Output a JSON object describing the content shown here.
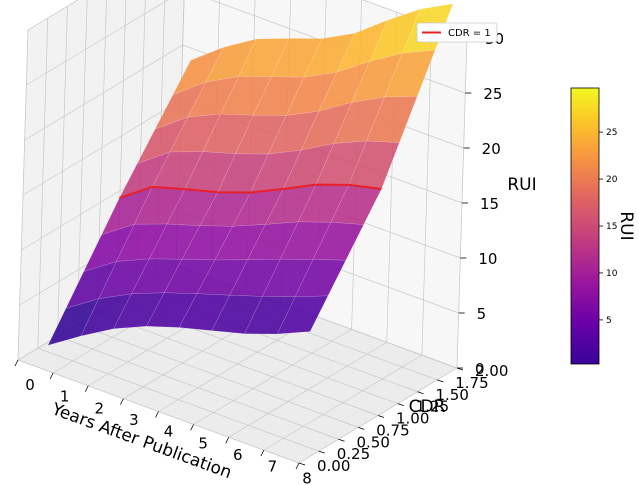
{
  "chart_data": {
    "type": "surface3d",
    "title": "",
    "x_axis": {
      "label": "Years After Publication",
      "ticks": [
        "0",
        "1",
        "2",
        "3",
        "4",
        "5",
        "6",
        "7",
        "8"
      ],
      "range": [
        0,
        8
      ]
    },
    "y_axis": {
      "label": "CDR",
      "ticks": [
        "0.00",
        "0.25",
        "0.50",
        "0.75",
        "1.00",
        "1.25",
        "1.50",
        "1.75",
        "2.00"
      ],
      "range": [
        0,
        2
      ]
    },
    "z_axis": {
      "label": "RUI",
      "ticks": [
        "0",
        "5",
        "10",
        "15",
        "20",
        "25",
        "30"
      ],
      "range": [
        0,
        30
      ]
    },
    "colorbar": {
      "label": "RUI",
      "ticks": [
        "5",
        "10",
        "15",
        "20",
        "25"
      ],
      "range": [
        0.3,
        29.7
      ],
      "colormap": "plasma"
    },
    "legend": {
      "placement": "top-right",
      "entries": [
        {
          "name": "CDR = 1",
          "color": "#e8202a"
        }
      ]
    },
    "surface": {
      "x": [
        0,
        1,
        2,
        3,
        4,
        5,
        6,
        7,
        8
      ],
      "y": [
        0,
        0.25,
        0.5,
        0.75,
        1.0,
        1.25,
        1.5,
        1.75,
        2.0
      ],
      "z_at_cdr_0": [
        0.5,
        1.6,
        2.5,
        2.9,
        2.9,
        2.7,
        2.5,
        2.6,
        3.0
      ],
      "z_at_cdr_1": [
        12.0,
        13.3,
        13.2,
        13.0,
        13.1,
        13.6,
        14.2,
        14.3,
        14.0
      ],
      "z_at_cdr_2": [
        22.5,
        24.0,
        25.0,
        25.2,
        25.3,
        26.0,
        27.5,
        28.8,
        29.5
      ]
    },
    "highlight_line": {
      "name": "CDR = 1",
      "cdr": 1.0,
      "x": [
        0,
        1,
        2,
        3,
        4,
        5,
        6,
        7,
        8
      ],
      "z": [
        12.0,
        13.3,
        13.2,
        13.0,
        13.1,
        13.6,
        14.2,
        14.3,
        14.0
      ]
    },
    "grid": true
  }
}
